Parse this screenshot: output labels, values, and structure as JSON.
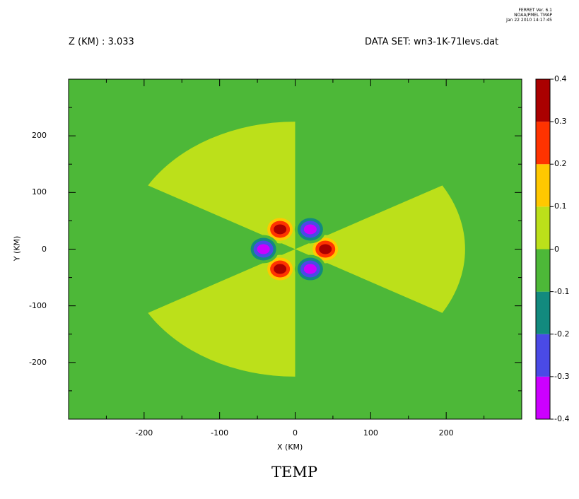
{
  "banner": {
    "line1": "FERRET Ver. 6.1",
    "line2": "NOAA/PMEL TMAP",
    "line3": "Jan 22 2010 14:17:45"
  },
  "header": {
    "z_level": "Z (KM) : 3.033",
    "dataset": "DATA SET: wn3-1K-71levs.dat"
  },
  "chart_data": {
    "type": "heatmap",
    "title": "TEMP",
    "xlabel": "X (KM)",
    "ylabel": "Y (KM)",
    "xlim": [
      -300,
      300
    ],
    "ylim": [
      -300,
      300
    ],
    "xticks": [
      -200,
      -100,
      0,
      100,
      200
    ],
    "yticks": [
      200,
      100,
      0,
      -100,
      -200
    ],
    "xtick_labels": [
      "-200",
      "-100",
      "0",
      "100",
      "200"
    ],
    "ytick_labels": [
      "200",
      "100",
      "0",
      "-100",
      "-200"
    ],
    "background_value_range": [
      -0.1,
      0
    ],
    "colorbar": {
      "levels": [
        -0.4,
        -0.3,
        -0.2,
        -0.1,
        0,
        0.1,
        0.2,
        0.3,
        0.4
      ],
      "labels": [
        "-0.4",
        "-0.3",
        "-0.2",
        "-0.1",
        "0",
        "0.1",
        "0.2",
        "0.3",
        "0.4"
      ],
      "colors": [
        "#cc00ff",
        "#4a4ae6",
        "#128a7e",
        "#4db838",
        "#bce01a",
        "#ffc800",
        "#ff3300",
        "#aa0000"
      ]
    },
    "sectors": [
      {
        "value_range": [
          0,
          0.1
        ],
        "center": [
          0,
          0
        ],
        "radius": 225,
        "angle_from_deg": -30,
        "angle_to_deg": 30
      },
      {
        "value_range": [
          0,
          0.1
        ],
        "center": [
          0,
          0
        ],
        "radius": 225,
        "angle_from_deg": 90,
        "angle_to_deg": 150
      },
      {
        "value_range": [
          0,
          0.1
        ],
        "center": [
          0,
          0
        ],
        "radius": 225,
        "angle_from_deg": 210,
        "angle_to_deg": 270
      }
    ],
    "blobs": [
      {
        "sign": "positive",
        "center": [
          40,
          0
        ],
        "peak_range": [
          0.3,
          0.4
        ]
      },
      {
        "sign": "positive",
        "center": [
          -20,
          35
        ],
        "peak_range": [
          0.3,
          0.4
        ]
      },
      {
        "sign": "positive",
        "center": [
          -20,
          -35
        ],
        "peak_range": [
          0.3,
          0.4
        ]
      },
      {
        "sign": "negative",
        "center": [
          -42,
          0
        ],
        "peak_range": [
          -0.4,
          -0.3
        ]
      },
      {
        "sign": "negative",
        "center": [
          20,
          35
        ],
        "peak_range": [
          -0.4,
          -0.3
        ]
      },
      {
        "sign": "negative",
        "center": [
          20,
          -35
        ],
        "peak_range": [
          -0.4,
          -0.3
        ]
      }
    ]
  }
}
